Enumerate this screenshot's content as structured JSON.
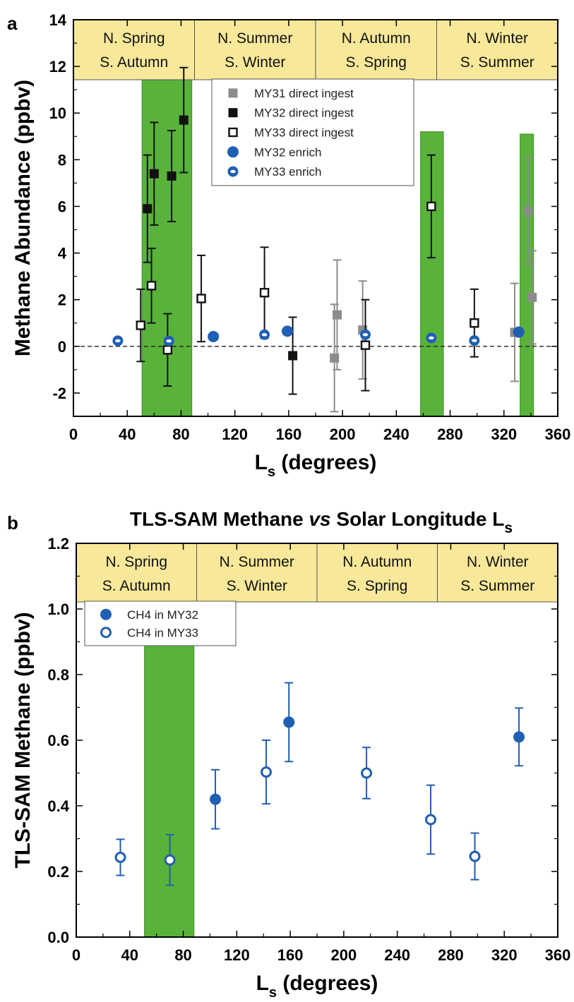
{
  "colors": {
    "season_fill": "#f7e89a",
    "green_band": "#59b33b",
    "my31": "#8c8c8c",
    "my32_direct": "#111111",
    "enrich": "#1f5fb4"
  },
  "chart_data": [
    {
      "panel": "a",
      "type": "scatter",
      "title": "",
      "xlabel": "L",
      "xlabel_sub": "s",
      "xlabel_rest": " (degrees)",
      "ylabel": "Methane Abundance (ppbv)",
      "xlim": [
        0,
        360
      ],
      "ylim": [
        -3,
        14
      ],
      "xticks": [
        "0",
        "40",
        "80",
        "120",
        "160",
        "200",
        "240",
        "280",
        "320",
        "360"
      ],
      "yticks": [
        "-2",
        "0",
        "2",
        "4",
        "6",
        "8",
        "10",
        "12",
        "14"
      ],
      "zero_line": true,
      "legend_position": "top-center",
      "seasons": [
        {
          "x0": 0,
          "x1": 90,
          "line1": "N. Spring",
          "line2": "S. Autumn"
        },
        {
          "x0": 90,
          "x1": 180,
          "line1": "N. Summer",
          "line2": "S. Winter"
        },
        {
          "x0": 180,
          "x1": 270,
          "line1": "N. Autumn",
          "line2": "S. Spring"
        },
        {
          "x0": 270,
          "x1": 360,
          "line1": "N. Winter",
          "line2": "S. Summer"
        }
      ],
      "bands": [
        [
          51,
          88,
          11.5
        ],
        [
          258,
          275,
          9.2
        ],
        [
          332,
          342,
          9.1
        ]
      ],
      "series": [
        {
          "name": "MY31 direct ingest",
          "marker": "square-filled",
          "color": "#8c8c8c",
          "points": [
            {
              "x": 194,
              "y": -0.5,
              "err": 2.3
            },
            {
              "x": 196,
              "y": 1.35,
              "err": 2.35
            },
            {
              "x": 215,
              "y": 0.7,
              "err": 2.1
            },
            {
              "x": 328,
              "y": 0.6,
              "err": 2.1
            },
            {
              "x": 338,
              "y": 5.8,
              "err": 2.3
            },
            {
              "x": 341,
              "y": 2.1,
              "err": 2.0
            }
          ]
        },
        {
          "name": "MY32 direct ingest",
          "marker": "square-filled",
          "color": "#111111",
          "points": [
            {
              "x": 55,
              "y": 5.9,
              "err": 2.3
            },
            {
              "x": 60,
              "y": 7.4,
              "err": 2.2
            },
            {
              "x": 73,
              "y": 7.3,
              "err": 1.95
            },
            {
              "x": 82,
              "y": 9.7,
              "err": 2.25
            },
            {
              "x": 163,
              "y": -0.4,
              "err": 1.65
            }
          ]
        },
        {
          "name": "MY33 direct ingest",
          "marker": "square-open",
          "color": "#111111",
          "points": [
            {
              "x": 50,
              "y": 0.9,
              "err": 1.55
            },
            {
              "x": 58,
              "y": 2.6,
              "err": 1.6
            },
            {
              "x": 70,
              "y": -0.15,
              "err": 1.55
            },
            {
              "x": 95,
              "y": 2.05,
              "err": 1.85
            },
            {
              "x": 142,
              "y": 2.3,
              "err": 1.95
            },
            {
              "x": 217,
              "y": 0.05,
              "err": 1.95
            },
            {
              "x": 266,
              "y": 6.0,
              "err": 2.2
            },
            {
              "x": 298,
              "y": 1.0,
              "err": 1.45
            }
          ]
        },
        {
          "name": "MY32 enrich",
          "marker": "circle-filled",
          "color": "#1f5fb4",
          "points": [
            {
              "x": 104,
              "y": 0.42
            },
            {
              "x": 159,
              "y": 0.65
            },
            {
              "x": 331,
              "y": 0.61
            }
          ]
        },
        {
          "name": "MY33 enrich",
          "marker": "circle-dot",
          "color": "#1f5fb4",
          "points": [
            {
              "x": 33,
              "y": 0.24
            },
            {
              "x": 71,
              "y": 0.23
            },
            {
              "x": 142,
              "y": 0.5
            },
            {
              "x": 217,
              "y": 0.5
            },
            {
              "x": 266,
              "y": 0.36
            },
            {
              "x": 298,
              "y": 0.25
            }
          ]
        }
      ]
    },
    {
      "panel": "b",
      "type": "scatter",
      "title": "TLS-SAM Methane vs Solar Longitude L",
      "title_pre": "TLS-SAM Methane ",
      "title_italic": "vs",
      "title_post": " Solar Longitude L",
      "title_sub": "s",
      "xlabel": "L",
      "xlabel_sub": "s",
      "xlabel_rest": " (degrees)",
      "ylabel": "TLS-SAM Methane (ppbv)",
      "xlim": [
        0,
        360
      ],
      "ylim": [
        0,
        1.2
      ],
      "xticks": [
        "0",
        "40",
        "80",
        "120",
        "160",
        "200",
        "240",
        "280",
        "320",
        "360"
      ],
      "yticks": [
        "0.0",
        "0.2",
        "0.4",
        "0.6",
        "0.8",
        "1.0",
        "1.2"
      ],
      "legend_position": "top-left",
      "seasons": [
        {
          "x0": 0,
          "x1": 90,
          "line1": "N. Spring",
          "line2": "S. Autumn"
        },
        {
          "x0": 90,
          "x1": 180,
          "line1": "N. Summer",
          "line2": "S. Winter"
        },
        {
          "x0": 180,
          "x1": 270,
          "line1": "N. Autumn",
          "line2": "S. Spring"
        },
        {
          "x0": 270,
          "x1": 360,
          "line1": "N. Winter",
          "line2": "S. Summer"
        }
      ],
      "bands": [
        [
          51,
          88,
          1.02
        ]
      ],
      "series": [
        {
          "name": "CH4 in MY32",
          "marker": "circle-filled",
          "color": "#1f5fb4",
          "points": [
            {
              "x": 104,
              "y": 0.42,
              "err": 0.09
            },
            {
              "x": 159,
              "y": 0.655,
              "err": 0.12
            },
            {
              "x": 331,
              "y": 0.61,
              "err": 0.088
            }
          ]
        },
        {
          "name": "CH4 in MY33",
          "marker": "circle-open",
          "color": "#1f5fb4",
          "points": [
            {
              "x": 33,
              "y": 0.243,
              "err": 0.055
            },
            {
              "x": 70,
              "y": 0.235,
              "err": 0.077
            },
            {
              "x": 142,
              "y": 0.503,
              "err": 0.097
            },
            {
              "x": 217,
              "y": 0.5,
              "err": 0.078
            },
            {
              "x": 265,
              "y": 0.358,
              "err": 0.105
            },
            {
              "x": 298,
              "y": 0.246,
              "err": 0.071
            }
          ]
        }
      ]
    }
  ]
}
